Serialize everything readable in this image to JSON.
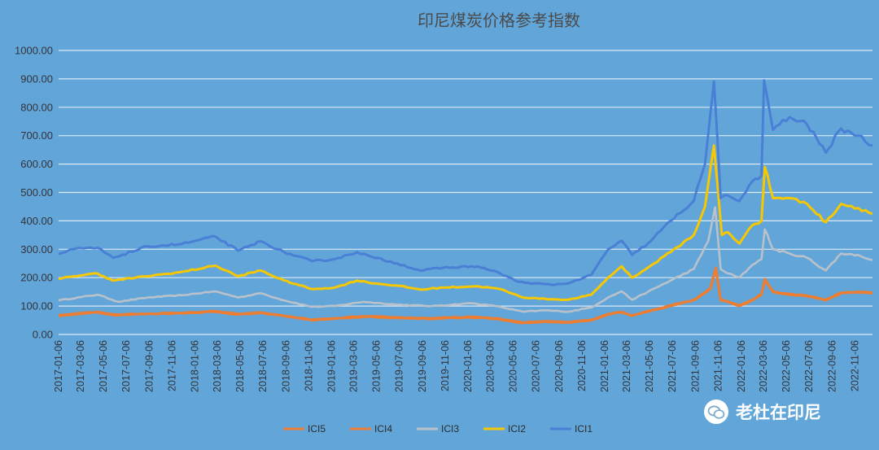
{
  "chart_data": {
    "type": "line",
    "title": "印尼煤炭价格参考指数",
    "xlabel": "",
    "ylabel": "",
    "ylim": [
      0,
      1000
    ],
    "yticks": [
      "0.00",
      "100.00",
      "200.00",
      "300.00",
      "400.00",
      "500.00",
      "600.00",
      "700.00",
      "800.00",
      "900.00",
      "1000.00"
    ],
    "ytick_values": [
      0,
      100,
      200,
      300,
      400,
      500,
      600,
      700,
      800,
      900,
      1000
    ],
    "x_start": "2017-01-06",
    "x_end": "2022-12-23",
    "xticks": [
      "2017-01-06",
      "2017-03-06",
      "2017-05-06",
      "2017-07-06",
      "2017-09-06",
      "2017-11-06",
      "2018-01-06",
      "2018-03-06",
      "2018-05-06",
      "2018-07-06",
      "2018-09-06",
      "2018-11-06",
      "2019-01-06",
      "2019-03-06",
      "2019-05-06",
      "2019-07-06",
      "2019-09-06",
      "2019-11-06",
      "2020-01-06",
      "2020-03-06",
      "2020-05-06",
      "2020-07-06",
      "2020-09-06",
      "2020-11-06",
      "2021-01-06",
      "2021-03-06",
      "2021-05-06",
      "2021-07-06",
      "2021-09-06",
      "2021-11-06",
      "2022-01-06",
      "2022-03-06",
      "2022-05-06",
      "2022-07-06",
      "2022-09-06",
      "2022-11-06"
    ],
    "grid": true,
    "legend_position": "bottom",
    "series": [
      {
        "name": "ICI5",
        "color": "#ed7d31",
        "points": [
          [
            "2017-01-06",
            65
          ],
          [
            "2017-04-20",
            78
          ],
          [
            "2017-06-01",
            68
          ],
          [
            "2017-09-01",
            72
          ],
          [
            "2017-12-01",
            75
          ],
          [
            "2018-03-01",
            80
          ],
          [
            "2018-05-01",
            70
          ],
          [
            "2018-07-01",
            75
          ],
          [
            "2018-09-01",
            65
          ],
          [
            "2018-11-15",
            50
          ],
          [
            "2019-01-15",
            55
          ],
          [
            "2019-04-01",
            62
          ],
          [
            "2019-07-01",
            58
          ],
          [
            "2019-10-01",
            55
          ],
          [
            "2020-01-15",
            60
          ],
          [
            "2020-03-20",
            55
          ],
          [
            "2020-06-01",
            40
          ],
          [
            "2020-08-01",
            45
          ],
          [
            "2020-10-01",
            42
          ],
          [
            "2020-12-01",
            50
          ],
          [
            "2021-01-15",
            70
          ],
          [
            "2021-02-20",
            78
          ],
          [
            "2021-03-20",
            65
          ],
          [
            "2021-05-01",
            80
          ],
          [
            "2021-07-01",
            100
          ],
          [
            "2021-09-01",
            120
          ],
          [
            "2021-10-15",
            160
          ],
          [
            "2021-10-30",
            232
          ],
          [
            "2021-11-12",
            120
          ],
          [
            "2021-12-01",
            115
          ],
          [
            "2022-01-01",
            100
          ],
          [
            "2022-02-05",
            120
          ],
          [
            "2022-03-01",
            140
          ],
          [
            "2022-03-10",
            192
          ],
          [
            "2022-04-01",
            150
          ],
          [
            "2022-05-15",
            140
          ],
          [
            "2022-07-01",
            135
          ],
          [
            "2022-08-20",
            120
          ],
          [
            "2022-09-30",
            145
          ],
          [
            "2022-11-15",
            148
          ],
          [
            "2022-12-23",
            145
          ]
        ]
      },
      {
        "name": "ICI4",
        "color": "#ed7d31",
        "points": [
          [
            "2017-01-06",
            68
          ],
          [
            "2017-04-20",
            80
          ],
          [
            "2017-06-01",
            70
          ],
          [
            "2017-09-01",
            73
          ],
          [
            "2017-12-01",
            76
          ],
          [
            "2018-03-01",
            82
          ],
          [
            "2018-05-01",
            72
          ],
          [
            "2018-07-01",
            77
          ],
          [
            "2018-09-01",
            66
          ],
          [
            "2018-11-15",
            52
          ],
          [
            "2019-01-15",
            57
          ],
          [
            "2019-04-01",
            64
          ],
          [
            "2019-07-01",
            60
          ],
          [
            "2019-10-01",
            57
          ],
          [
            "2020-01-15",
            62
          ],
          [
            "2020-03-20",
            57
          ],
          [
            "2020-06-01",
            42
          ],
          [
            "2020-08-01",
            47
          ],
          [
            "2020-10-01",
            44
          ],
          [
            "2020-12-01",
            52
          ],
          [
            "2021-01-15",
            72
          ],
          [
            "2021-02-20",
            80
          ],
          [
            "2021-03-20",
            67
          ],
          [
            "2021-05-01",
            82
          ],
          [
            "2021-07-01",
            102
          ],
          [
            "2021-09-01",
            122
          ],
          [
            "2021-10-15",
            162
          ],
          [
            "2021-10-30",
            235
          ],
          [
            "2021-11-12",
            122
          ],
          [
            "2021-12-01",
            117
          ],
          [
            "2022-01-01",
            102
          ],
          [
            "2022-02-05",
            122
          ],
          [
            "2022-03-01",
            142
          ],
          [
            "2022-03-10",
            195
          ],
          [
            "2022-04-01",
            152
          ],
          [
            "2022-05-15",
            142
          ],
          [
            "2022-07-01",
            137
          ],
          [
            "2022-08-20",
            122
          ],
          [
            "2022-09-30",
            147
          ],
          [
            "2022-11-15",
            150
          ],
          [
            "2022-12-23",
            147
          ]
        ]
      },
      {
        "name": "ICI3",
        "color": "#b9c1cb",
        "points": [
          [
            "2017-01-06",
            120
          ],
          [
            "2017-04-20",
            140
          ],
          [
            "2017-06-15",
            115
          ],
          [
            "2017-09-01",
            130
          ],
          [
            "2017-12-01",
            138
          ],
          [
            "2018-03-01",
            152
          ],
          [
            "2018-05-01",
            130
          ],
          [
            "2018-07-01",
            145
          ],
          [
            "2018-09-01",
            120
          ],
          [
            "2018-11-15",
            97
          ],
          [
            "2019-01-15",
            100
          ],
          [
            "2019-04-01",
            115
          ],
          [
            "2019-07-01",
            105
          ],
          [
            "2019-10-01",
            100
          ],
          [
            "2020-01-15",
            110
          ],
          [
            "2020-03-20",
            100
          ],
          [
            "2020-06-01",
            80
          ],
          [
            "2020-08-01",
            85
          ],
          [
            "2020-10-01",
            80
          ],
          [
            "2020-12-01",
            95
          ],
          [
            "2021-01-15",
            130
          ],
          [
            "2021-02-20",
            152
          ],
          [
            "2021-03-20",
            122
          ],
          [
            "2021-05-01",
            150
          ],
          [
            "2021-07-01",
            190
          ],
          [
            "2021-09-01",
            230
          ],
          [
            "2021-10-10",
            330
          ],
          [
            "2021-10-28",
            448
          ],
          [
            "2021-11-12",
            230
          ],
          [
            "2021-12-01",
            215
          ],
          [
            "2022-01-01",
            200
          ],
          [
            "2022-02-05",
            245
          ],
          [
            "2022-03-01",
            265
          ],
          [
            "2022-03-10",
            370
          ],
          [
            "2022-04-01",
            300
          ],
          [
            "2022-05-15",
            285
          ],
          [
            "2022-07-01",
            270
          ],
          [
            "2022-08-20",
            225
          ],
          [
            "2022-09-30",
            285
          ],
          [
            "2022-11-15",
            280
          ],
          [
            "2022-12-23",
            262
          ]
        ]
      },
      {
        "name": "ICI2",
        "color": "#f7c800",
        "points": [
          [
            "2017-01-06",
            195
          ],
          [
            "2017-02-15",
            205
          ],
          [
            "2017-04-20",
            215
          ],
          [
            "2017-06-01",
            190
          ],
          [
            "2017-09-01",
            205
          ],
          [
            "2017-12-01",
            220
          ],
          [
            "2018-03-01",
            242
          ],
          [
            "2018-05-01",
            205
          ],
          [
            "2018-07-01",
            225
          ],
          [
            "2018-09-01",
            190
          ],
          [
            "2018-11-15",
            160
          ],
          [
            "2019-01-15",
            165
          ],
          [
            "2019-03-15",
            190
          ],
          [
            "2019-05-01",
            180
          ],
          [
            "2019-07-01",
            172
          ],
          [
            "2019-09-01",
            158
          ],
          [
            "2019-11-01",
            165
          ],
          [
            "2020-02-01",
            170
          ],
          [
            "2020-04-01",
            160
          ],
          [
            "2020-06-01",
            130
          ],
          [
            "2020-08-01",
            125
          ],
          [
            "2020-10-01",
            122
          ],
          [
            "2020-12-01",
            140
          ],
          [
            "2021-01-15",
            200
          ],
          [
            "2021-02-20",
            240
          ],
          [
            "2021-03-20",
            200
          ],
          [
            "2021-05-01",
            235
          ],
          [
            "2021-07-01",
            290
          ],
          [
            "2021-09-01",
            350
          ],
          [
            "2021-10-01",
            450
          ],
          [
            "2021-10-25",
            665
          ],
          [
            "2021-11-15",
            350
          ],
          [
            "2021-12-01",
            360
          ],
          [
            "2022-01-01",
            320
          ],
          [
            "2022-02-05",
            385
          ],
          [
            "2022-03-01",
            400
          ],
          [
            "2022-03-10",
            590
          ],
          [
            "2022-04-01",
            480
          ],
          [
            "2022-05-15",
            480
          ],
          [
            "2022-07-01",
            460
          ],
          [
            "2022-08-20",
            395
          ],
          [
            "2022-09-30",
            460
          ],
          [
            "2022-11-15",
            445
          ],
          [
            "2022-12-23",
            425
          ]
        ]
      },
      {
        "name": "ICI1",
        "color": "#4a7fd6",
        "points": [
          [
            "2017-01-06",
            283
          ],
          [
            "2017-02-15",
            300
          ],
          [
            "2017-04-20",
            305
          ],
          [
            "2017-06-01",
            270
          ],
          [
            "2017-09-01",
            310
          ],
          [
            "2017-12-01",
            318
          ],
          [
            "2018-03-01",
            345
          ],
          [
            "2018-05-01",
            295
          ],
          [
            "2018-07-01",
            328
          ],
          [
            "2018-09-01",
            290
          ],
          [
            "2018-11-15",
            258
          ],
          [
            "2019-01-15",
            265
          ],
          [
            "2019-03-15",
            290
          ],
          [
            "2019-05-01",
            270
          ],
          [
            "2019-07-01",
            250
          ],
          [
            "2019-09-01",
            225
          ],
          [
            "2019-11-01",
            235
          ],
          [
            "2020-02-01",
            240
          ],
          [
            "2020-04-01",
            215
          ],
          [
            "2020-05-20",
            185
          ],
          [
            "2020-07-01",
            180
          ],
          [
            "2020-08-15",
            175
          ],
          [
            "2020-10-01",
            180
          ],
          [
            "2020-12-01",
            210
          ],
          [
            "2021-01-15",
            300
          ],
          [
            "2021-02-20",
            330
          ],
          [
            "2021-03-20",
            280
          ],
          [
            "2021-05-01",
            320
          ],
          [
            "2021-07-01",
            400
          ],
          [
            "2021-09-01",
            470
          ],
          [
            "2021-10-01",
            600
          ],
          [
            "2021-10-25",
            890
          ],
          [
            "2021-11-12",
            480
          ],
          [
            "2021-12-01",
            490
          ],
          [
            "2022-01-01",
            470
          ],
          [
            "2022-02-05",
            540
          ],
          [
            "2022-03-01",
            560
          ],
          [
            "2022-03-08",
            895
          ],
          [
            "2022-04-01",
            720
          ],
          [
            "2022-05-15",
            765
          ],
          [
            "2022-07-01",
            740
          ],
          [
            "2022-08-20",
            640
          ],
          [
            "2022-09-30",
            725
          ],
          [
            "2022-11-15",
            700
          ],
          [
            "2022-12-23",
            665
          ]
        ]
      }
    ]
  },
  "legend": [
    {
      "label": "ICI5",
      "color": "#ed7d31"
    },
    {
      "label": "ICI4",
      "color": "#ed7d31"
    },
    {
      "label": "ICI3",
      "color": "#b9c1cb"
    },
    {
      "label": "ICI2",
      "color": "#f7c800"
    },
    {
      "label": "ICI1",
      "color": "#4a7fd6"
    }
  ],
  "watermark": {
    "text": "老杜在印尼",
    "icon": "wechat-icon"
  },
  "colors": {
    "background": "#62a6d9",
    "grid": "#dbe9f5",
    "title": "#4a4a4a"
  }
}
